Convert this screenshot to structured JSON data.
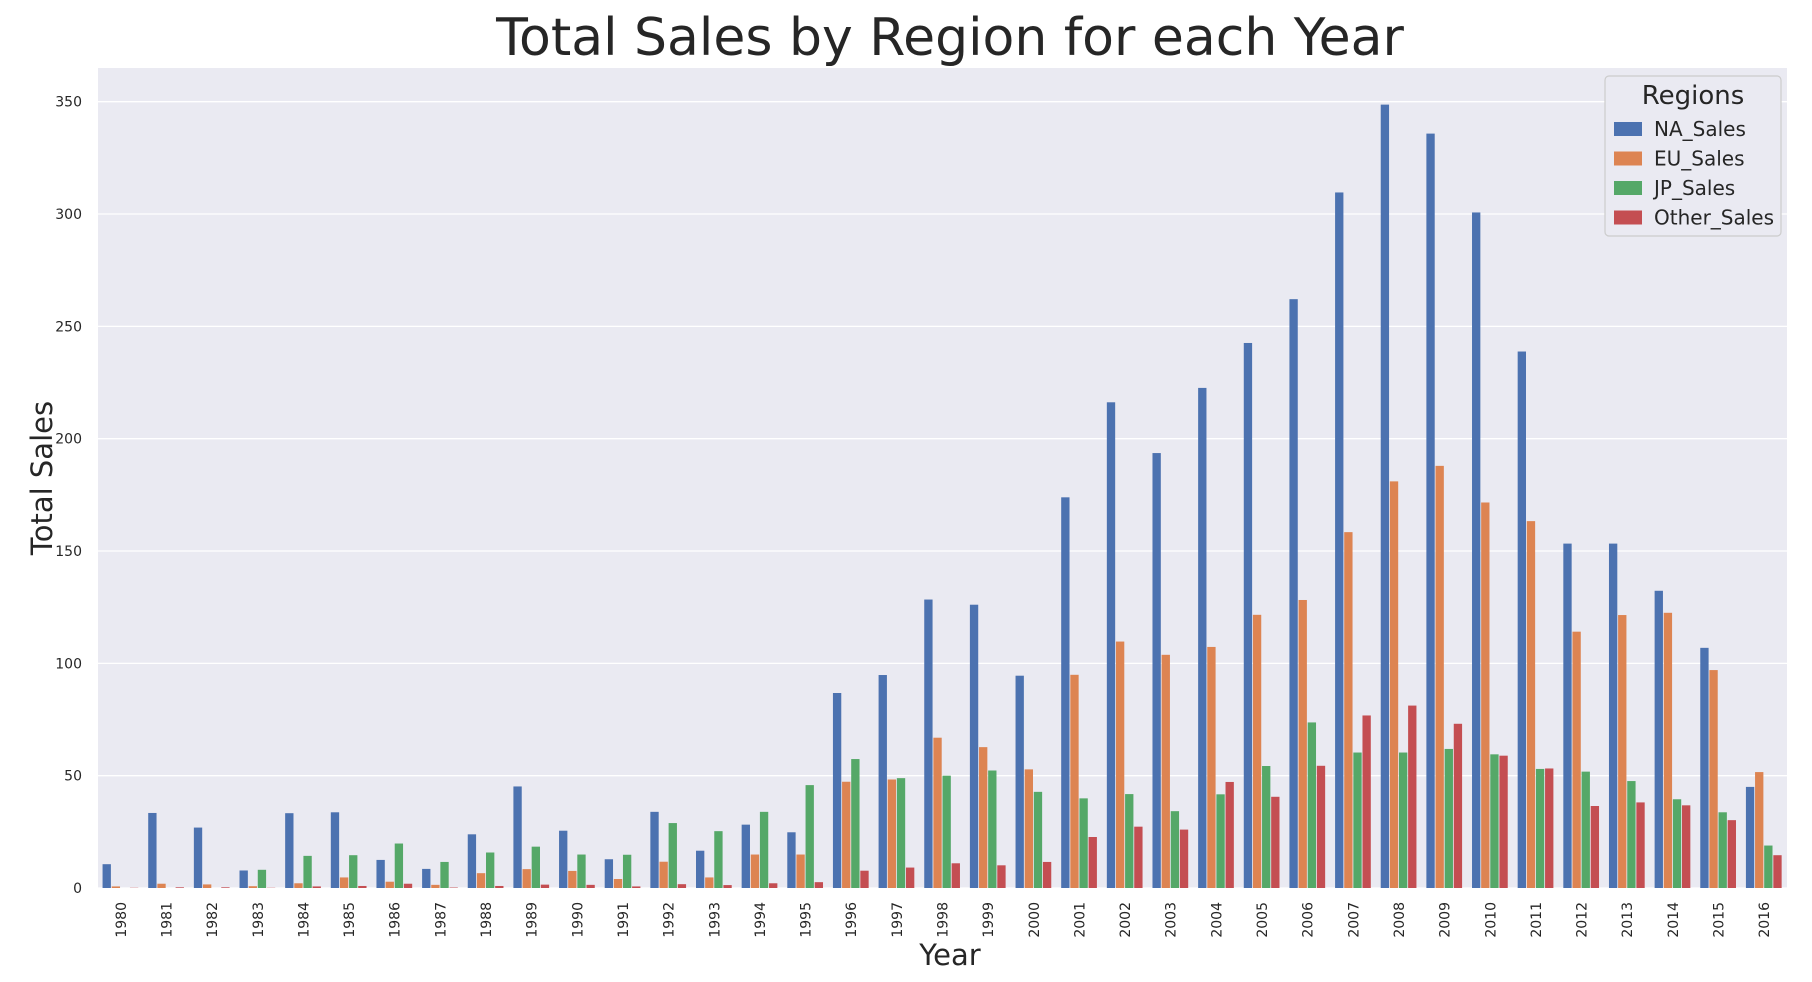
{
  "colors": {
    "background": "#eaeaf2",
    "grid": "#ffffff",
    "NA_Sales": "#4c72b0",
    "EU_Sales": "#dd8452",
    "JP_Sales": "#55a868",
    "Other_Sales": "#c44e52"
  },
  "chart_data": {
    "type": "bar",
    "title": "Total Sales by Region for each Year",
    "xlabel": "Year",
    "ylabel": "Total Sales",
    "ylim": [
      0,
      365
    ],
    "yticks": [
      0,
      50,
      100,
      150,
      200,
      250,
      300,
      350
    ],
    "grid": true,
    "legend_title": "Regions",
    "legend_position": "top-right",
    "categories": [
      "1980",
      "1981",
      "1982",
      "1983",
      "1984",
      "1985",
      "1986",
      "1987",
      "1988",
      "1989",
      "1990",
      "1991",
      "1992",
      "1993",
      "1994",
      "1995",
      "1996",
      "1997",
      "1998",
      "1999",
      "2000",
      "2001",
      "2002",
      "2003",
      "2004",
      "2005",
      "2006",
      "2007",
      "2008",
      "2009",
      "2010",
      "2011",
      "2012",
      "2013",
      "2014",
      "2015",
      "2016"
    ],
    "series": [
      {
        "name": "NA_Sales",
        "values": [
          10.6,
          33.4,
          26.9,
          7.8,
          33.3,
          33.7,
          12.5,
          8.5,
          23.9,
          45.2,
          25.5,
          12.8,
          33.9,
          16.6,
          28.2,
          24.8,
          86.8,
          94.8,
          128.4,
          126.1,
          94.5,
          173.9,
          216.2,
          193.6,
          222.6,
          242.6,
          262.1,
          309.6,
          348.7,
          335.8,
          300.7,
          238.8,
          153.3,
          153.3,
          132.3,
          106.9,
          45.0
        ]
      },
      {
        "name": "EU_Sales",
        "values": [
          0.7,
          1.9,
          1.6,
          0.8,
          2.1,
          4.7,
          2.8,
          1.4,
          6.6,
          8.4,
          7.6,
          4.0,
          11.7,
          4.7,
          14.9,
          14.9,
          47.3,
          48.3,
          66.9,
          62.7,
          52.8,
          94.9,
          109.7,
          103.8,
          107.3,
          121.6,
          128.2,
          158.4,
          181.0,
          187.9,
          171.6,
          163.3,
          114.1,
          121.5,
          122.5,
          97.0,
          51.6
        ]
      },
      {
        "name": "JP_Sales",
        "values": [
          0.0,
          0.0,
          0.0,
          8.1,
          14.3,
          14.6,
          19.8,
          11.6,
          15.8,
          18.4,
          14.9,
          14.8,
          28.9,
          25.3,
          33.9,
          45.8,
          57.4,
          48.9,
          50.0,
          52.3,
          42.8,
          39.9,
          41.8,
          34.2,
          41.7,
          54.3,
          73.7,
          60.3,
          60.3,
          61.9,
          59.5,
          53.0,
          51.8,
          47.6,
          39.5,
          33.7,
          18.9
        ]
      },
      {
        "name": "Other_Sales",
        "values": [
          0.1,
          0.3,
          0.3,
          0.1,
          0.7,
          0.9,
          1.9,
          0.2,
          0.9,
          1.5,
          1.4,
          0.7,
          1.7,
          1.3,
          2.1,
          2.6,
          7.7,
          9.1,
          11.0,
          10.1,
          11.6,
          22.7,
          27.3,
          26.0,
          47.2,
          40.6,
          54.4,
          76.8,
          81.2,
          73.1,
          58.9,
          53.2,
          36.5,
          38.1,
          36.8,
          30.2,
          14.6
        ]
      }
    ]
  }
}
